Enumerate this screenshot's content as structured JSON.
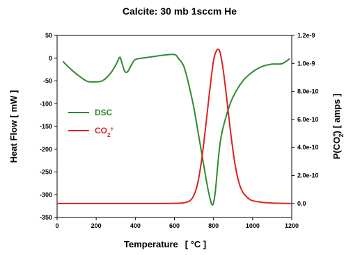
{
  "chart_data": {
    "type": "line",
    "title": "Calcite: 30 mb 1sccm He",
    "xlabel": "Temperature",
    "xlabel_unit": "[ °C ]",
    "ylabel": "Heat Flow [ mW ]",
    "y2label": "P(CO",
    "y2label_sup": "+",
    "y2label_sub": "2",
    "y2label_end": ")   [ amps ]",
    "xlim": [
      0,
      1200
    ],
    "ylim": [
      -350,
      50
    ],
    "y2lim": [
      -1e-10,
      1.2e-09
    ],
    "x_ticks": [
      "0",
      "200",
      "400",
      "600",
      "800",
      "1000",
      "1200"
    ],
    "y_ticks": [
      "50",
      "0",
      "-50",
      "-100",
      "-150",
      "-200",
      "-250",
      "-300",
      "-350"
    ],
    "y2_ticks": [
      "0.0",
      "2.0e-10",
      "4.0e-10",
      "6.0e-10",
      "8.0e-10",
      "1.0e-9",
      "1.2e-9"
    ],
    "legend_position": "middle-left",
    "series": [
      {
        "name": "DSC",
        "axis": "left",
        "color": "#2e8b2e",
        "x": [
          30,
          60,
          100,
          150,
          180,
          230,
          270,
          300,
          320,
          330,
          345,
          360,
          380,
          400,
          450,
          500,
          550,
          600,
          620,
          650,
          680,
          700,
          720,
          740,
          760,
          775,
          790,
          800,
          810,
          825,
          840,
          870,
          900,
          950,
          1000,
          1050,
          1100,
          1150,
          1190
        ],
        "y": [
          -7,
          -20,
          -35,
          -50,
          -52,
          -50,
          -35,
          -15,
          2,
          -8,
          -28,
          -30,
          -15,
          -3,
          1,
          4,
          7,
          8,
          0,
          -20,
          -70,
          -110,
          -160,
          -210,
          -260,
          -295,
          -320,
          -318,
          -290,
          -220,
          -170,
          -120,
          -85,
          -50,
          -30,
          -18,
          -13,
          -12,
          -1
        ]
      },
      {
        "name": "CO2+",
        "name_base": "CO",
        "name_sub": "2",
        "name_sup": "+",
        "axis": "right",
        "color": "#e02020",
        "x": [
          0,
          100,
          200,
          300,
          400,
          500,
          600,
          650,
          680,
          700,
          720,
          740,
          760,
          780,
          800,
          815,
          825,
          835,
          850,
          870,
          890,
          910,
          930,
          950,
          980,
          1000,
          1050,
          1100,
          1150,
          1200
        ],
        "y": [
          0,
          0,
          0,
          0,
          0,
          0,
          1e-12,
          5e-12,
          2e-11,
          6e-11,
          1.5e-10,
          3.2e-10,
          5.5e-10,
          8e-10,
          1.02e-09,
          1.09e-09,
          1.1e-09,
          1.07e-09,
          9.5e-10,
          7.2e-10,
          4.8e-10,
          2.8e-10,
          1.5e-10,
          8e-11,
          3.5e-11,
          2e-11,
          8e-12,
          3e-12,
          1e-12,
          0
        ]
      }
    ]
  }
}
